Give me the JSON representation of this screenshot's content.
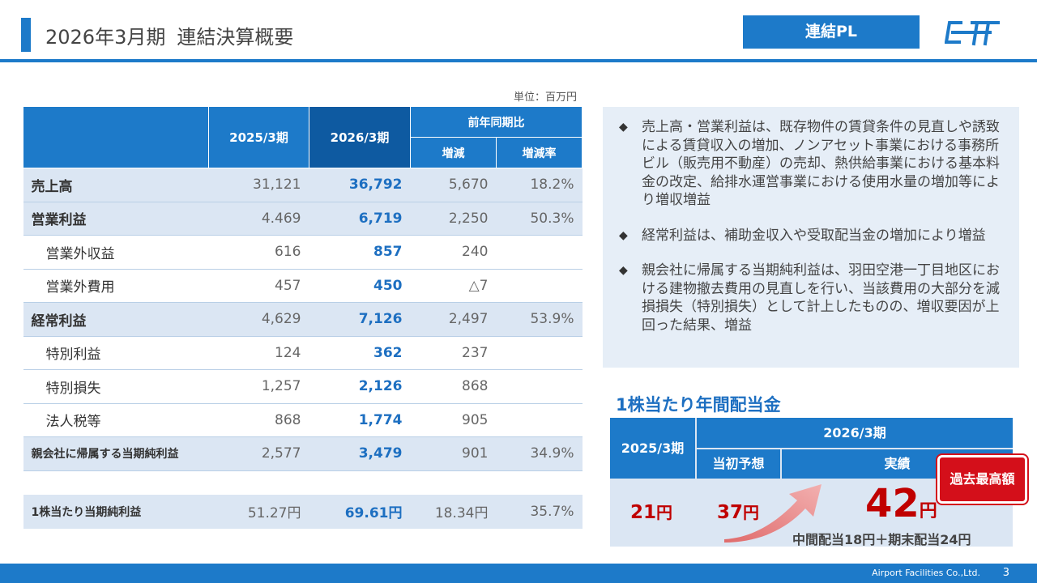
{
  "header": {
    "title_period": "2026年3月期",
    "title_main": "連結決算概要",
    "badge": "連結PL"
  },
  "unit": "単位：百万円",
  "table": {
    "headers": {
      "prev": "2025/3期",
      "cur": "2026/3期",
      "yoy": "前年同期比",
      "diff": "増減",
      "rate": "増減率"
    },
    "rows": [
      {
        "label": "売上高",
        "prev": "31,121",
        "cur": "36,792",
        "diff": "5,670",
        "rate": "18.2%"
      },
      {
        "label": "営業利益",
        "prev": "4.469",
        "cur": "6,719",
        "diff": "2,250",
        "rate": "50.3%"
      },
      {
        "label": "営業外収益",
        "prev": "616",
        "cur": "857",
        "diff": "240",
        "rate": ""
      },
      {
        "label": "営業外費用",
        "prev": "457",
        "cur": "450",
        "diff": "△7",
        "rate": ""
      },
      {
        "label": "経常利益",
        "prev": "4,629",
        "cur": "7,126",
        "diff": "2,497",
        "rate": "53.9%"
      },
      {
        "label": "特別利益",
        "prev": "124",
        "cur": "362",
        "diff": "237",
        "rate": ""
      },
      {
        "label": "特別損失",
        "prev": "1,257",
        "cur": "2,126",
        "diff": "868",
        "rate": ""
      },
      {
        "label": "法人税等",
        "prev": "868",
        "cur": "1,774",
        "diff": "905",
        "rate": ""
      },
      {
        "label": "親会社に帰属する当期純利益",
        "prev": "2,577",
        "cur": "3,479",
        "diff": "901",
        "rate": "34.9%"
      }
    ],
    "eps": {
      "label": "1株当たり当期純利益",
      "prev": "51.27円",
      "cur": "69.61円",
      "diff": "18.34円",
      "rate": "35.7%"
    }
  },
  "notes": [
    "売上高・営業利益は、既存物件の賃貸条件の見直しや誘致による賃貸収入の増加、ノンアセット事業における事務所ビル（販売用不動産）の売却、熱供給事業における基本料金の改定、給排水運営事業における使用水量の増加等により増収増益",
    "経常利益は、補助金収入や受取配当金の増加により増益",
    "親会社に帰属する当期純利益は、羽田空港一丁目地区における建物撤去費用の見直しを行い、当該費用の大部分を減損損失（特別損失）として計上したものの、増収要因が上回った結果、増益"
  ],
  "dividend": {
    "title": "1株当たり年間配当金",
    "prev_header": "2025/3期",
    "cur_header": "2026/3期",
    "plan_header": "当初予想",
    "actual_header": "実績",
    "prev_value": "21",
    "plan_value": "37",
    "actual_value": "42",
    "yen": "円",
    "breakdown": "中間配当18円＋期末配当24円",
    "record_badge": "過去最高額"
  },
  "footer": {
    "company": "Airport Facilities Co.,Ltd.",
    "page": "3"
  },
  "colors": {
    "primary": "#1d7ac9",
    "dark": "#0e5aa1",
    "accent_red": "#c00000",
    "shade": "#dbe6f3"
  }
}
